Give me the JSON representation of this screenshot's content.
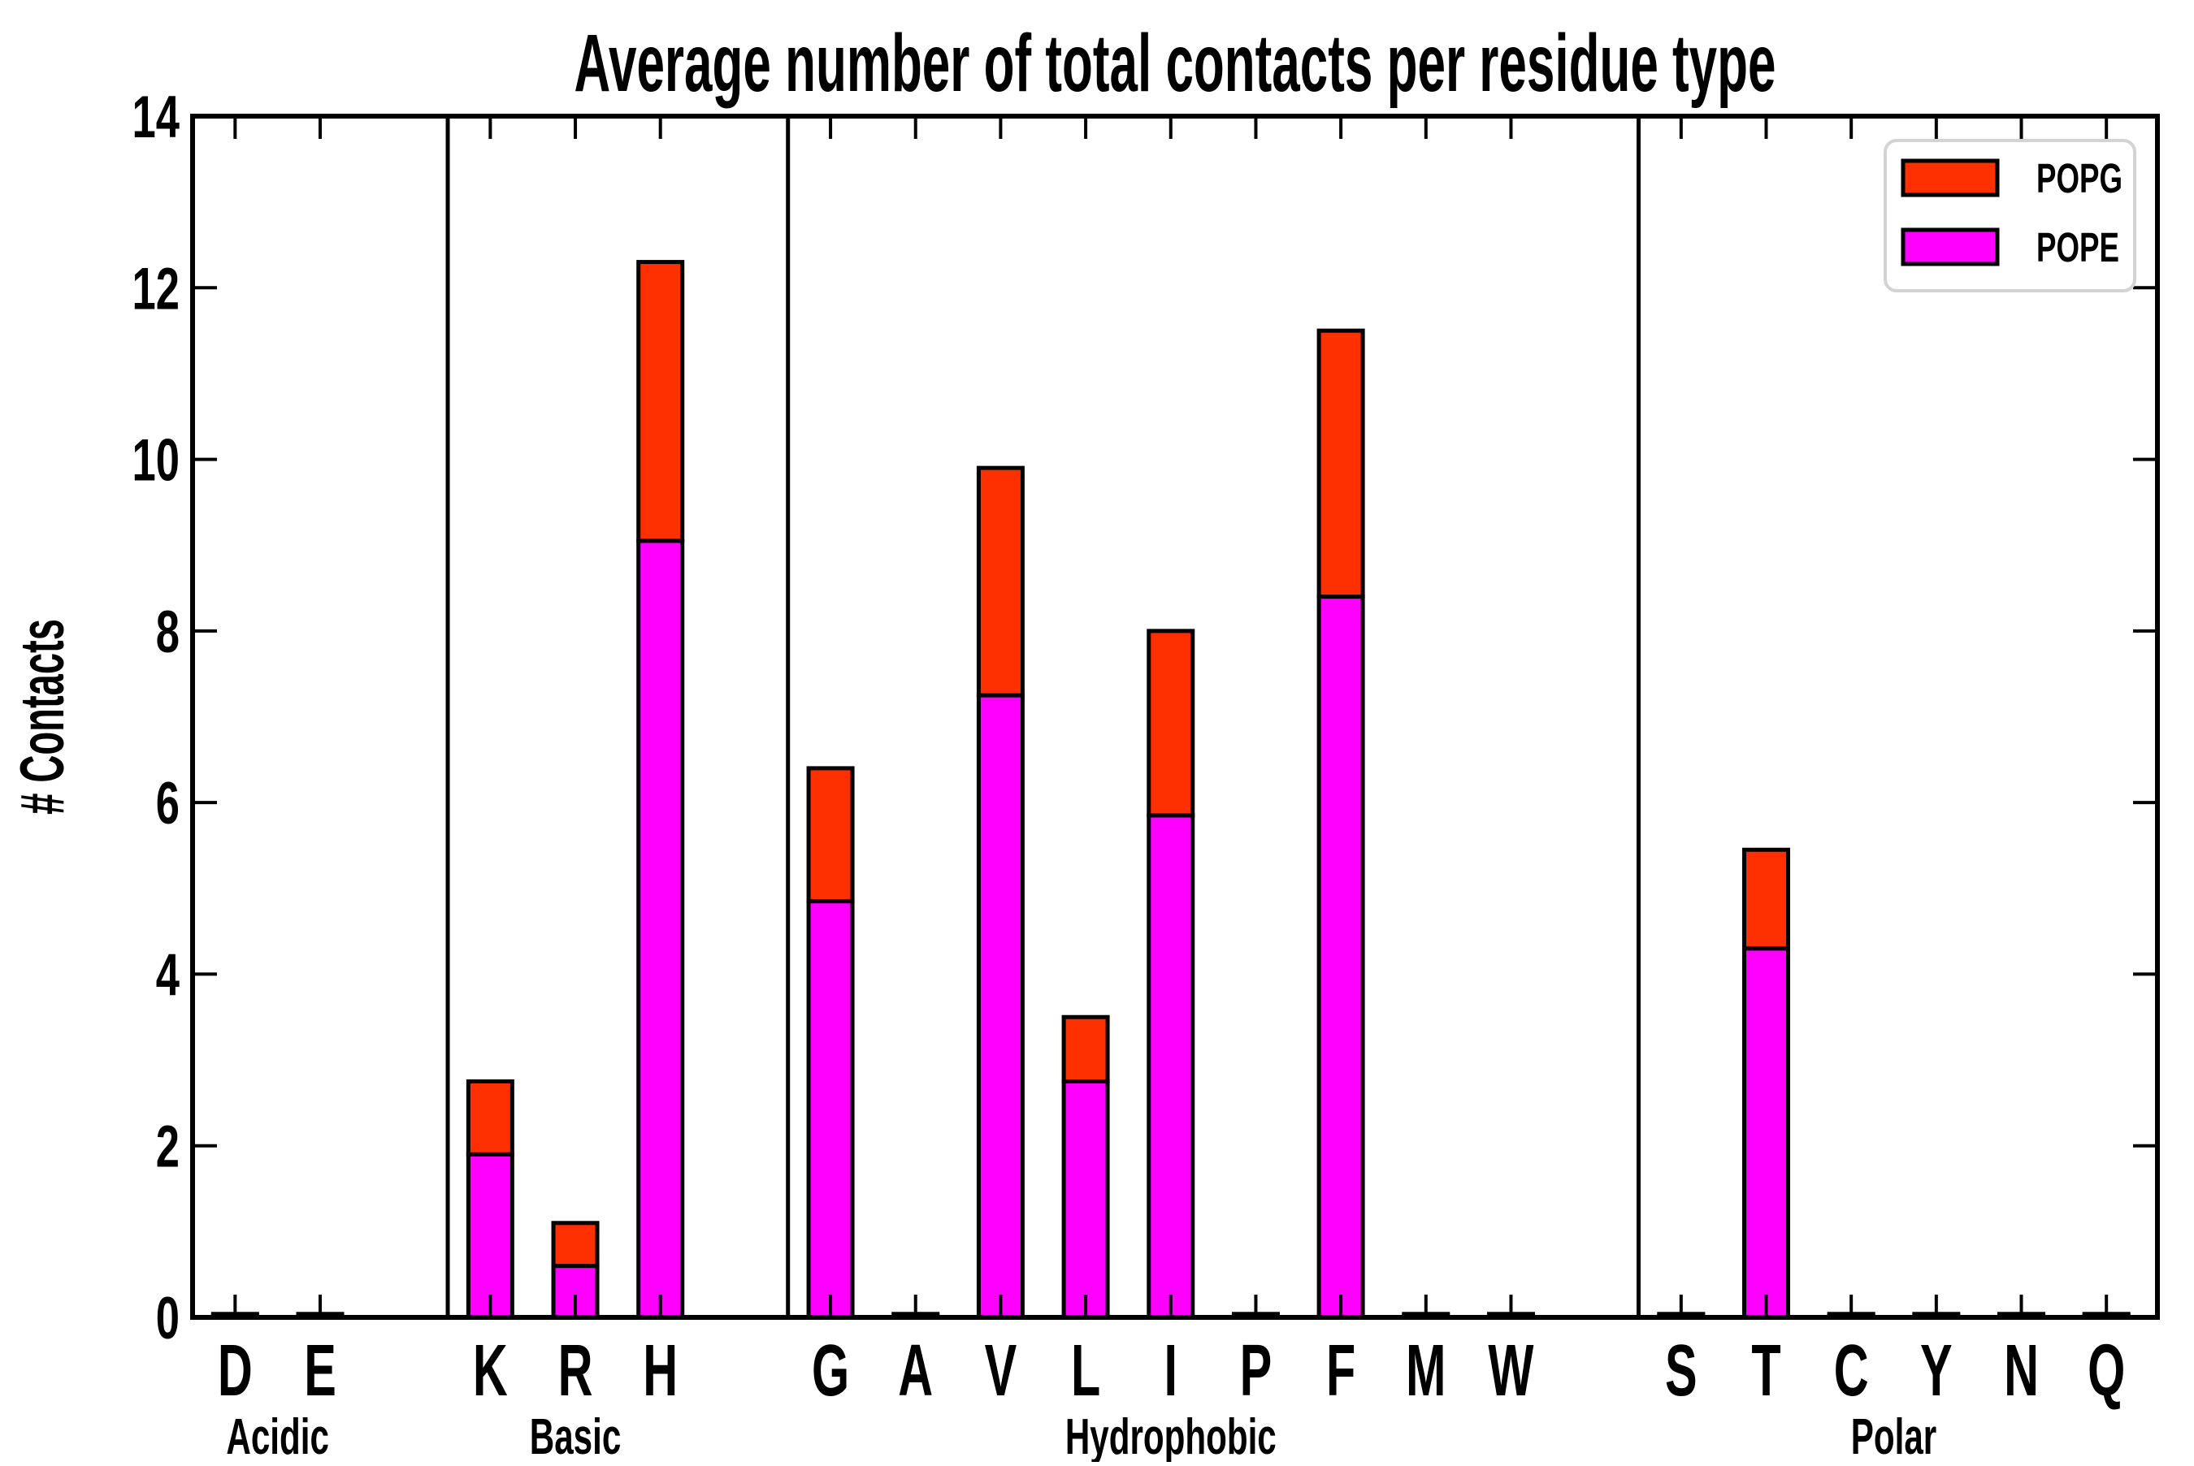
{
  "figure": {
    "background": "#ffffff",
    "axis_color": "#000000",
    "legend_border_color": "#d3d3d3",
    "bar_edge_color": "#000000"
  },
  "chart_data": {
    "type": "bar",
    "stacked": true,
    "title": "Average number of total contacts per residue type",
    "xlabel": "",
    "ylabel": "# Contacts",
    "ylim": [
      0,
      14
    ],
    "yticks": [
      0,
      2,
      4,
      6,
      8,
      10,
      12,
      14
    ],
    "xlim": [
      0,
      23.1
    ],
    "grid": false,
    "legend_position": "upper right",
    "legend_order": [
      "POPG",
      "POPE"
    ],
    "groups": [
      {
        "name": "Acidic",
        "residues": [
          "D",
          "E"
        ]
      },
      {
        "name": "Basic",
        "residues": [
          "K",
          "R",
          "H"
        ]
      },
      {
        "name": "Hydrophobic",
        "residues": [
          "G",
          "A",
          "V",
          "L",
          "I",
          "P",
          "F",
          "M",
          "W"
        ]
      },
      {
        "name": "Polar",
        "residues": [
          "S",
          "T",
          "C",
          "Y",
          "N",
          "Q"
        ]
      }
    ],
    "categories": [
      "D",
      "E",
      "K",
      "R",
      "H",
      "G",
      "A",
      "V",
      "L",
      "I",
      "P",
      "F",
      "M",
      "W",
      "S",
      "T",
      "C",
      "Y",
      "N",
      "Q"
    ],
    "series": [
      {
        "name": "POPE",
        "color": "#ff00ff",
        "values": [
          0.02,
          0.02,
          1.9,
          0.6,
          9.05,
          4.85,
          0.02,
          7.25,
          2.75,
          5.85,
          0.02,
          8.4,
          0.02,
          0.02,
          0.02,
          4.3,
          0.02,
          0.02,
          0.02,
          0.02
        ]
      },
      {
        "name": "POPG",
        "color": "#ff3000",
        "values": [
          0.02,
          0.02,
          0.85,
          0.5,
          3.25,
          1.55,
          0.02,
          2.65,
          0.75,
          2.15,
          0.02,
          3.1,
          0.02,
          0.02,
          0.02,
          1.15,
          0.02,
          0.02,
          0.02,
          0.02
        ]
      }
    ]
  }
}
